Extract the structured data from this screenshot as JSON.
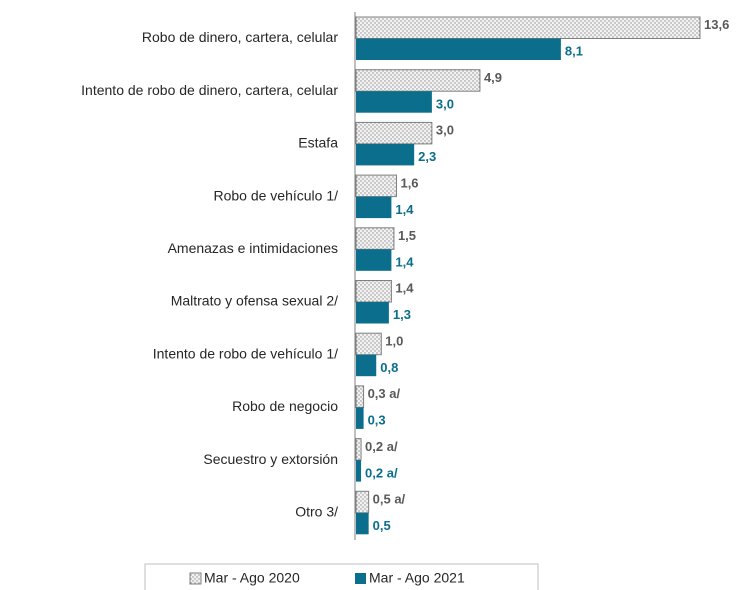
{
  "chart_data": {
    "type": "hbar",
    "categories": [
      "Robo de dinero, cartera, celular",
      "Intento de robo de dinero, cartera, celular",
      "Estafa",
      "Robo  de vehículo 1/",
      "Amenazas e intimidaciones",
      "Maltrato y ofensa sexual 2/",
      "Intento de robo de vehículo 1/",
      "Robo de negocio",
      "Secuestro y extorsión",
      "Otro 3/"
    ],
    "series": [
      {
        "name": "Mar - Ago 2020",
        "color": "#7f7f7f",
        "values": [
          13.6,
          4.9,
          3.0,
          1.6,
          1.5,
          1.4,
          1.0,
          0.3,
          0.2,
          0.5
        ],
        "value_labels": [
          "13,6",
          "4,9",
          "3,0",
          "1,6",
          "1,5",
          "1,4",
          "1,0",
          "0,3 a/",
          "0,2 a/",
          "0,5 a/"
        ]
      },
      {
        "name": "Mar - Ago 2021",
        "color": "#0a6e8c",
        "values": [
          8.1,
          3.0,
          2.3,
          1.4,
          1.4,
          1.3,
          0.8,
          0.3,
          0.2,
          0.5
        ],
        "value_labels": [
          "8,1",
          "3,0",
          "2,3",
          "1,4",
          "1,4",
          "1,3",
          "0,8",
          "0,3",
          "0,2 a/",
          "0,5"
        ]
      }
    ],
    "xlim": [
      0,
      13.6
    ],
    "legend": "bottom"
  }
}
